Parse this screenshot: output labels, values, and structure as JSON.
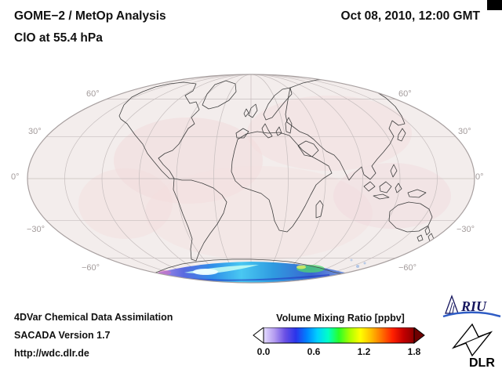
{
  "header": {
    "title_line1": "GOME−2 / MetOp Analysis",
    "title_line2": "ClO at 55.4 hPa",
    "datetime": "Oct 08, 2010, 12:00 GMT"
  },
  "map": {
    "lat_labels": [
      "60°",
      "30°",
      "0°",
      "−30°",
      "−60°"
    ],
    "base_tint": "#f3edec",
    "grid_color": "#c6bebe",
    "outline_color": "#3f3f3f"
  },
  "footer": {
    "line1": "4DVar Chemical Data Assimilation",
    "line2": "SACADA Version 1.7",
    "line3": "http://wdc.dlr.de"
  },
  "colorbar": {
    "title": "Volume Mixing Ratio [ppbv]",
    "tick_labels": [
      "0.0",
      "0.6",
      "1.2",
      "1.8"
    ],
    "colors": [
      "#e4dcff",
      "#b49cf0",
      "#6a50e4",
      "#2a34ea",
      "#0080ff",
      "#00d0ff",
      "#00ffc8",
      "#28ff28",
      "#a8ff00",
      "#ffff00",
      "#ffbe00",
      "#ff7000",
      "#ff2000",
      "#c40000",
      "#8a0000"
    ],
    "left_arrow_color": "#ffffff",
    "right_arrow_color": "#6e0000"
  },
  "logos": {
    "riu_text": "RIU",
    "dlr_text": "DLR"
  },
  "chart_data": {
    "type": "heatmap",
    "title": "GOME−2 / MetOp Analysis — ClO at 55.4 hPa",
    "timestamp": "Oct 08, 2010, 12:00 GMT",
    "projection": "Mollweide global map, central meridian 0°",
    "variable": "ClO volume mixing ratio",
    "pressure_level_hPa": 55.4,
    "units": "ppbv",
    "colorbar_label": "Volume Mixing Ratio [ppbv]",
    "colorbar_ticks": [
      0.0,
      0.6,
      1.2,
      1.8
    ],
    "value_range": [
      0.0,
      1.8
    ],
    "lat_gridlines_deg": [
      60,
      30,
      0,
      -30,
      -60
    ],
    "lon_gridline_spacing_deg": 30,
    "regions": [
      {
        "region": "Antarctic polar band (south of ~60°S, roughly 70°W–60°E)",
        "approx_value_ppbv": [
          0.1,
          0.8
        ],
        "appearance": "purple-blue-cyan crescent; bright cyan/white maximum near 40°W, green-yellow patch near 40°E"
      },
      {
        "region": "rest of globe",
        "approx_value_ppbv": [
          0.0,
          0.05
        ],
        "appearance": "near-white with faint pink mottling"
      }
    ],
    "source_labels": [
      "4DVar Chemical Data Assimilation",
      "SACADA Version 1.7",
      "http://wdc.dlr.de"
    ],
    "credits": [
      "RIU",
      "DLR"
    ]
  }
}
